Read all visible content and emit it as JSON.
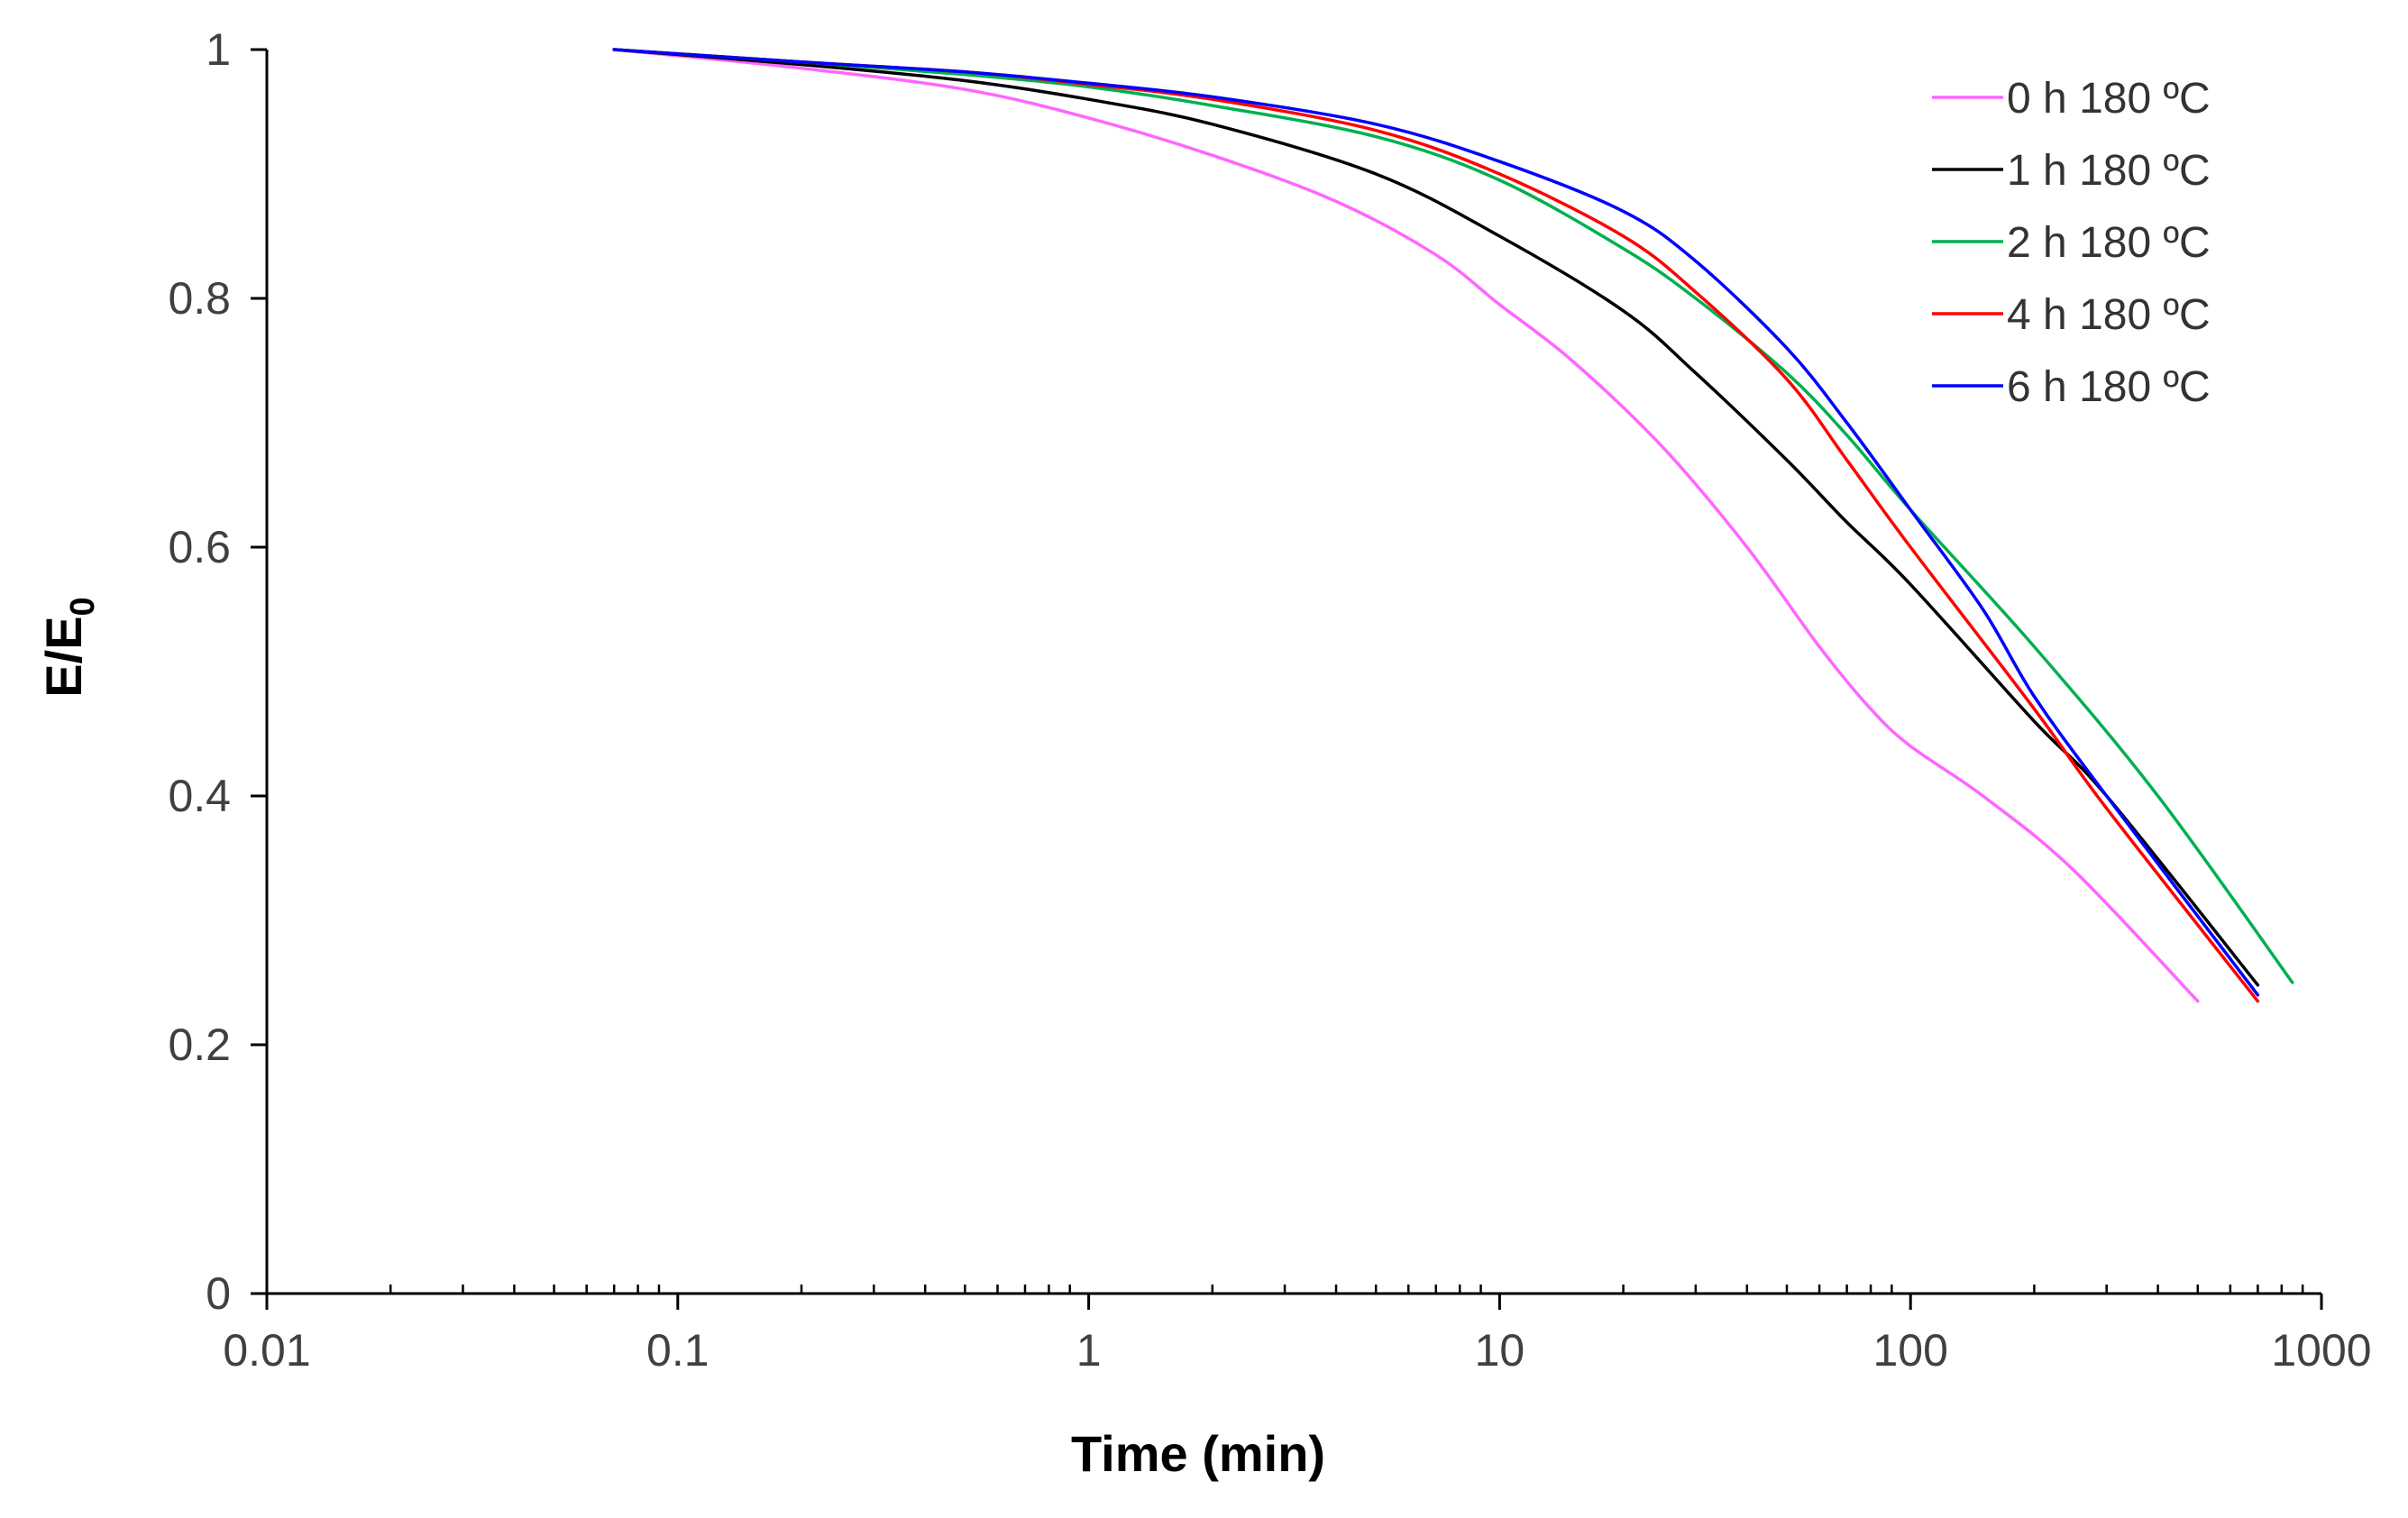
{
  "chart_data": {
    "type": "line",
    "title": "",
    "xlabel": "Time (min)",
    "ylabel_main": "E/E",
    "ylabel_sub": "0",
    "xscale": "log",
    "xlim": [
      0.01,
      1000
    ],
    "ylim": [
      0,
      1
    ],
    "grid": false,
    "legend_position": "top-right",
    "x_ticks": [
      {
        "value": 0.01,
        "label": "0.01"
      },
      {
        "value": 0.1,
        "label": "0.1"
      },
      {
        "value": 1,
        "label": "1"
      },
      {
        "value": 10,
        "label": "10"
      },
      {
        "value": 100,
        "label": "100"
      },
      {
        "value": 1000,
        "label": "1000"
      }
    ],
    "y_ticks": [
      {
        "value": 0,
        "label": "0"
      },
      {
        "value": 0.2,
        "label": "0.2"
      },
      {
        "value": 0.4,
        "label": "0.4"
      },
      {
        "value": 0.6,
        "label": "0.6"
      },
      {
        "value": 0.8,
        "label": "0.8"
      },
      {
        "value": 1,
        "label": "1"
      }
    ],
    "series": [
      {
        "name": "0 h 180 ºC",
        "color": "#ff66ff",
        "points": [
          [
            0.07,
            1.0
          ],
          [
            0.2,
            0.985
          ],
          [
            0.5,
            0.968
          ],
          [
            1,
            0.945
          ],
          [
            2,
            0.915
          ],
          [
            4,
            0.878
          ],
          [
            7,
            0.835
          ],
          [
            10,
            0.795
          ],
          [
            15,
            0.75
          ],
          [
            25,
            0.68
          ],
          [
            40,
            0.6
          ],
          [
            60,
            0.52
          ],
          [
            80,
            0.47
          ],
          [
            100,
            0.44
          ],
          [
            150,
            0.4
          ],
          [
            250,
            0.34
          ],
          [
            500,
            0.235
          ]
        ]
      },
      {
        "name": "1 h 180 ºC",
        "color": "#000000",
        "points": [
          [
            0.07,
            1.0
          ],
          [
            0.2,
            0.988
          ],
          [
            0.5,
            0.975
          ],
          [
            1,
            0.96
          ],
          [
            2,
            0.94
          ],
          [
            5,
            0.9
          ],
          [
            10,
            0.85
          ],
          [
            20,
            0.79
          ],
          [
            30,
            0.74
          ],
          [
            50,
            0.67
          ],
          [
            70,
            0.62
          ],
          [
            100,
            0.57
          ],
          [
            200,
            0.46
          ],
          [
            300,
            0.4
          ],
          [
            700,
            0.248
          ]
        ]
      },
      {
        "name": "2 h 180 ºC",
        "color": "#00b050",
        "points": [
          [
            0.07,
            1.0
          ],
          [
            0.2,
            0.99
          ],
          [
            0.5,
            0.98
          ],
          [
            1,
            0.97
          ],
          [
            2,
            0.955
          ],
          [
            5,
            0.93
          ],
          [
            10,
            0.895
          ],
          [
            20,
            0.84
          ],
          [
            30,
            0.8
          ],
          [
            50,
            0.74
          ],
          [
            70,
            0.69
          ],
          [
            100,
            0.63
          ],
          [
            200,
            0.52
          ],
          [
            400,
            0.4
          ],
          [
            850,
            0.25
          ]
        ]
      },
      {
        "name": "4 h 180 ºC",
        "color": "#ff0000",
        "points": [
          [
            0.07,
            1.0
          ],
          [
            0.2,
            0.99
          ],
          [
            0.5,
            0.982
          ],
          [
            1,
            0.972
          ],
          [
            2,
            0.96
          ],
          [
            5,
            0.935
          ],
          [
            10,
            0.9
          ],
          [
            20,
            0.85
          ],
          [
            30,
            0.805
          ],
          [
            50,
            0.735
          ],
          [
            70,
            0.67
          ],
          [
            100,
            0.6
          ],
          [
            200,
            0.47
          ],
          [
            300,
            0.39
          ],
          [
            700,
            0.235
          ]
        ]
      },
      {
        "name": "6 h 180 ºC",
        "color": "#0000ff",
        "points": [
          [
            0.07,
            1.0
          ],
          [
            0.2,
            0.99
          ],
          [
            0.5,
            0.982
          ],
          [
            1,
            0.973
          ],
          [
            2,
            0.962
          ],
          [
            5,
            0.94
          ],
          [
            10,
            0.91
          ],
          [
            20,
            0.87
          ],
          [
            30,
            0.83
          ],
          [
            50,
            0.76
          ],
          [
            70,
            0.7
          ],
          [
            100,
            0.63
          ],
          [
            150,
            0.55
          ],
          [
            200,
            0.48
          ],
          [
            300,
            0.4
          ],
          [
            700,
            0.24
          ]
        ]
      }
    ]
  }
}
